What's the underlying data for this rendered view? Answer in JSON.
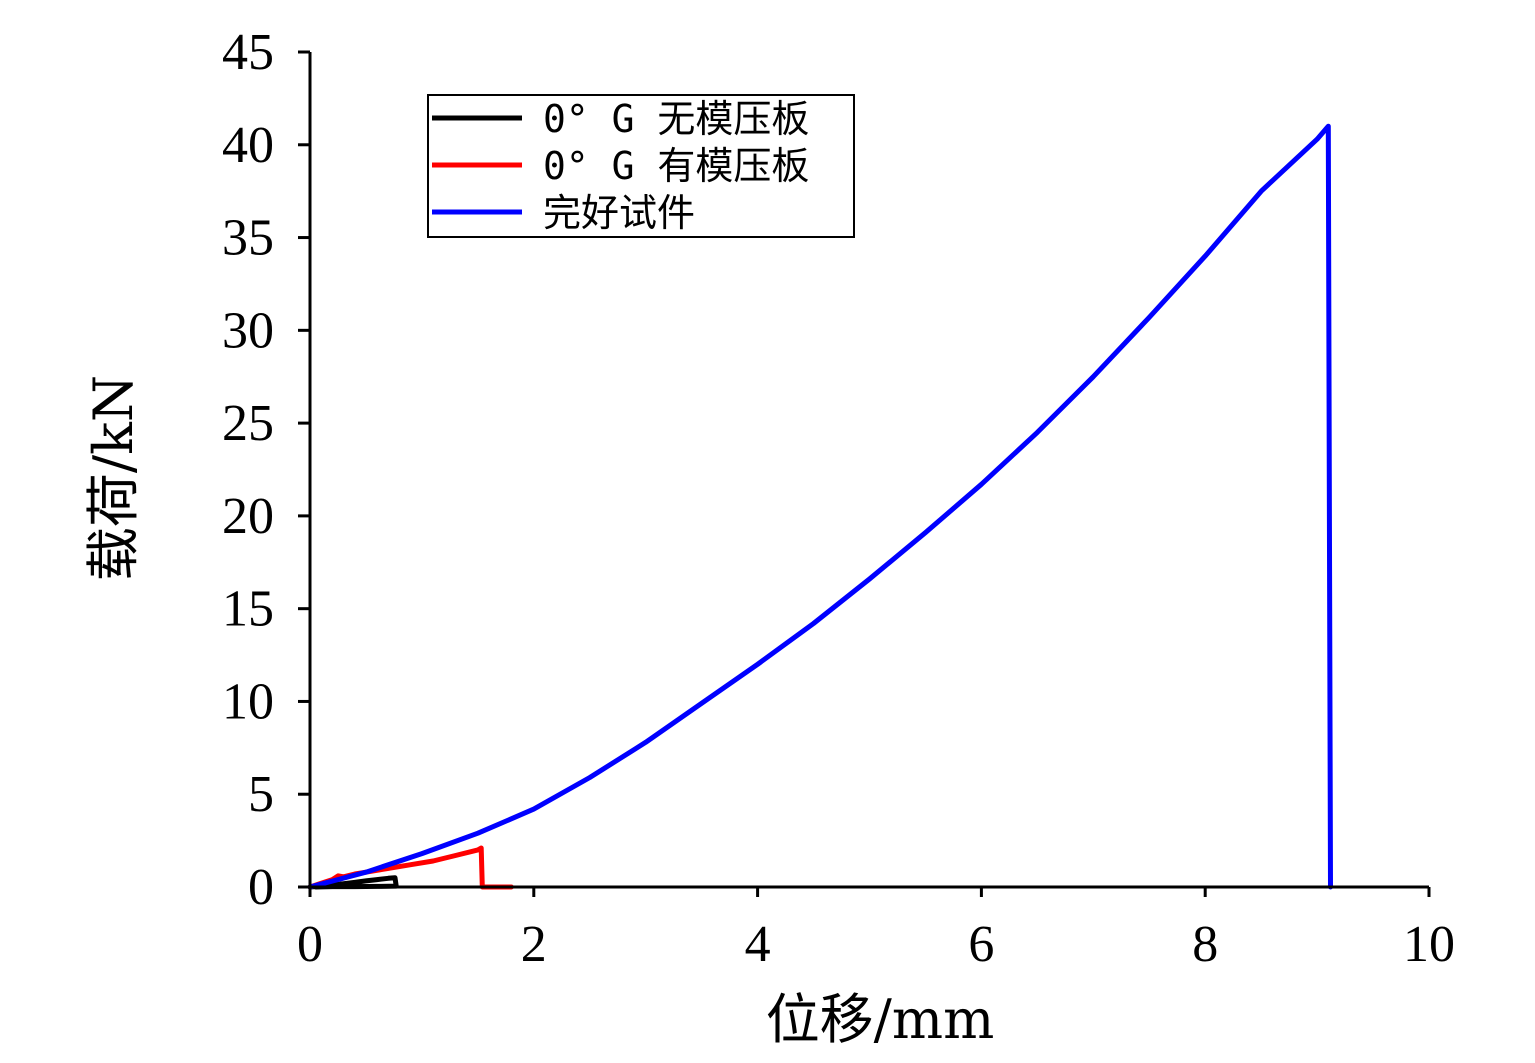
{
  "chart_data": {
    "type": "line",
    "xlabel": "位移/mm",
    "ylabel": "载荷/kN",
    "xlim": [
      0,
      10
    ],
    "ylim": [
      0,
      45
    ],
    "x_ticks": [
      0,
      2,
      4,
      6,
      8,
      10
    ],
    "y_ticks": [
      0,
      5,
      10,
      15,
      20,
      25,
      30,
      35,
      40,
      45
    ],
    "grid": false,
    "legend_position": "top-left",
    "series": [
      {
        "name": "0° G 无模压板",
        "color": "#000000",
        "x": [
          0,
          0.1,
          0.2,
          0.3,
          0.4,
          0.5,
          0.6,
          0.7,
          0.76,
          0.77,
          0.6,
          0.4,
          0.2,
          0.05
        ],
        "y": [
          0,
          0.05,
          0.1,
          0.18,
          0.25,
          0.33,
          0.4,
          0.47,
          0.5,
          0.05,
          0.03,
          0.02,
          0.02,
          0
        ]
      },
      {
        "name": "0° G 有模压板",
        "color": "#ff0000",
        "x": [
          0,
          0.1,
          0.2,
          0.25,
          0.3,
          0.4,
          0.5,
          0.7,
          0.9,
          1.1,
          1.3,
          1.5,
          1.53,
          1.54,
          1.6,
          1.8
        ],
        "y": [
          0,
          0.2,
          0.4,
          0.6,
          0.55,
          0.7,
          0.8,
          1.0,
          1.2,
          1.4,
          1.7,
          2.0,
          2.1,
          0,
          0,
          0
        ]
      },
      {
        "name": "完好试件",
        "color": "#0000ff",
        "x": [
          0,
          0.5,
          1,
          1.5,
          2,
          2.5,
          3,
          3.5,
          4,
          4.5,
          5,
          5.5,
          6,
          6.5,
          7,
          7.5,
          8,
          8.5,
          9,
          9.1,
          9.11,
          9.12
        ],
        "y": [
          0,
          0.8,
          1.8,
          2.9,
          4.2,
          5.9,
          7.8,
          9.9,
          12.0,
          14.2,
          16.6,
          19.1,
          21.7,
          24.5,
          27.5,
          30.7,
          34.0,
          37.5,
          40.3,
          41.0,
          20.0,
          0
        ]
      }
    ]
  }
}
